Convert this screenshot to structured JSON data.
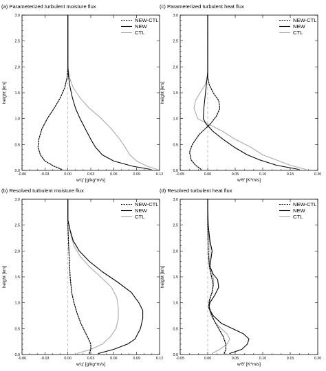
{
  "chart_data": [
    {
      "type": "line",
      "title": "(a) Parameterized turbulent moisture flux",
      "xlabel": "w'q' [g/kg*m/s]",
      "ylabel": "height [km]",
      "xlim": [
        -0.06,
        0.12
      ],
      "ylim": [
        0,
        3.0
      ],
      "xticks": [
        "-0.06",
        "-0.03",
        "0.00",
        "0.03",
        "0.06",
        "0.09",
        "0.12"
      ],
      "yticks": [
        "0.0",
        "0.5",
        "1.0",
        "1.5",
        "2.0",
        "2.5",
        "3.0"
      ],
      "legend_position": "top-right",
      "zero_line": true,
      "series": [
        {
          "name": "NEW-CTL",
          "style": "dotted",
          "color": "#000000",
          "points": [
            [
              -0.008,
              0.02
            ],
            [
              -0.018,
              0.08
            ],
            [
              -0.03,
              0.18
            ],
            [
              -0.036,
              0.3
            ],
            [
              -0.039,
              0.45
            ],
            [
              -0.038,
              0.6
            ],
            [
              -0.034,
              0.8
            ],
            [
              -0.027,
              1.0
            ],
            [
              -0.018,
              1.2
            ],
            [
              -0.01,
              1.4
            ],
            [
              -0.004,
              1.6
            ],
            [
              -0.001,
              1.8
            ],
            [
              0,
              2.0
            ],
            [
              0,
              3.0
            ]
          ]
        },
        {
          "name": "NEW",
          "style": "solid",
          "color": "#000000",
          "points": [
            [
              0.108,
              0.02
            ],
            [
              0.085,
              0.08
            ],
            [
              0.06,
              0.18
            ],
            [
              0.045,
              0.3
            ],
            [
              0.036,
              0.45
            ],
            [
              0.03,
              0.6
            ],
            [
              0.023,
              0.8
            ],
            [
              0.016,
              1.0
            ],
            [
              0.01,
              1.2
            ],
            [
              0.006,
              1.4
            ],
            [
              0.003,
              1.6
            ],
            [
              0.001,
              1.8
            ],
            [
              0,
              2.0
            ],
            [
              0,
              3.0
            ]
          ]
        },
        {
          "name": "CTL",
          "style": "solid",
          "color": "#aaaaaa",
          "points": [
            [
              0.117,
              0.02
            ],
            [
              0.104,
              0.08
            ],
            [
              0.09,
              0.18
            ],
            [
              0.081,
              0.3
            ],
            [
              0.075,
              0.45
            ],
            [
              0.068,
              0.6
            ],
            [
              0.057,
              0.8
            ],
            [
              0.044,
              1.0
            ],
            [
              0.028,
              1.2
            ],
            [
              0.016,
              1.4
            ],
            [
              0.007,
              1.6
            ],
            [
              0.002,
              1.8
            ],
            [
              0,
              2.0
            ],
            [
              0,
              3.0
            ]
          ]
        }
      ]
    },
    {
      "type": "line",
      "title": "(c) Parameterized turbulent heat flux",
      "xlabel": "w'θ' [K*m/s]",
      "ylabel": "height [km]",
      "xlim": [
        -0.05,
        0.2
      ],
      "ylim": [
        0,
        3.0
      ],
      "xticks": [
        "-0.05",
        "0.00",
        "0.05",
        "0.10",
        "0.15",
        "0.20"
      ],
      "yticks": [
        "0.0",
        "0.5",
        "1.0",
        "1.5",
        "2.0",
        "2.5",
        "3.0"
      ],
      "legend_position": "top-right",
      "zero_line": true,
      "series": [
        {
          "name": "NEW-CTL",
          "style": "dotted",
          "color": "#000000",
          "points": [
            [
              -0.012,
              0.02
            ],
            [
              -0.022,
              0.1
            ],
            [
              -0.03,
              0.2
            ],
            [
              -0.033,
              0.35
            ],
            [
              -0.028,
              0.5
            ],
            [
              -0.015,
              0.7
            ],
            [
              0.005,
              0.9
            ],
            [
              0.016,
              1.05
            ],
            [
              0.022,
              1.2
            ],
            [
              0.02,
              1.35
            ],
            [
              0.01,
              1.5
            ],
            [
              0.003,
              1.65
            ],
            [
              0,
              1.8
            ],
            [
              0,
              3.0
            ]
          ]
        },
        {
          "name": "NEW",
          "style": "solid",
          "color": "#000000",
          "points": [
            [
              0.165,
              0.02
            ],
            [
              0.125,
              0.1
            ],
            [
              0.095,
              0.2
            ],
            [
              0.072,
              0.3
            ],
            [
              0.048,
              0.45
            ],
            [
              0.028,
              0.6
            ],
            [
              0.01,
              0.75
            ],
            [
              -0.003,
              0.9
            ],
            [
              -0.008,
              1.0
            ],
            [
              -0.007,
              1.2
            ],
            [
              -0.004,
              1.5
            ],
            [
              -0.002,
              1.7
            ],
            [
              0,
              1.9
            ],
            [
              0,
              3.0
            ]
          ]
        },
        {
          "name": "CTL",
          "style": "solid",
          "color": "#aaaaaa",
          "points": [
            [
              0.178,
              0.02
            ],
            [
              0.15,
              0.1
            ],
            [
              0.125,
              0.2
            ],
            [
              0.1,
              0.3
            ],
            [
              0.078,
              0.45
            ],
            [
              0.05,
              0.6
            ],
            [
              0.028,
              0.75
            ],
            [
              0,
              0.9
            ],
            [
              -0.018,
              1.0
            ],
            [
              -0.025,
              1.2
            ],
            [
              -0.022,
              1.35
            ],
            [
              -0.014,
              1.5
            ],
            [
              -0.005,
              1.65
            ],
            [
              0,
              1.8
            ],
            [
              0,
              3.0
            ]
          ]
        }
      ]
    },
    {
      "type": "line",
      "title": "(b) Resolved turbulent moisture flux",
      "xlabel": "w'q' [g/kg*m/s]",
      "ylabel": "height [km]",
      "xlim": [
        -0.06,
        0.12
      ],
      "ylim": [
        0,
        3.0
      ],
      "xticks": [
        "-0.06",
        "-0.03",
        "0.00",
        "0.03",
        "0.06",
        "0.09",
        "0.12"
      ],
      "yticks": [
        "0.0",
        "0.5",
        "1.0",
        "1.5",
        "2.0",
        "2.5",
        "3.0"
      ],
      "legend_position": "top-right",
      "zero_line": true,
      "series": [
        {
          "name": "NEW-CTL",
          "style": "dotted",
          "color": "#000000",
          "points": [
            [
              0.028,
              0.02
            ],
            [
              0.03,
              0.1
            ],
            [
              0.03,
              0.2
            ],
            [
              0.027,
              0.3
            ],
            [
              0.022,
              0.45
            ],
            [
              0.017,
              0.6
            ],
            [
              0.012,
              0.8
            ],
            [
              0.008,
              1.0
            ],
            [
              0.005,
              1.2
            ],
            [
              0.003,
              1.5
            ],
            [
              0.002,
              1.8
            ],
            [
              0.001,
              2.1
            ],
            [
              0,
              2.5
            ],
            [
              0,
              3.0
            ]
          ]
        },
        {
          "name": "NEW",
          "style": "solid",
          "color": "#000000",
          "points": [
            [
              0.04,
              0.02
            ],
            [
              0.06,
              0.1
            ],
            [
              0.078,
              0.2
            ],
            [
              0.088,
              0.3
            ],
            [
              0.095,
              0.5
            ],
            [
              0.098,
              0.7
            ],
            [
              0.098,
              0.85
            ],
            [
              0.093,
              1.0
            ],
            [
              0.083,
              1.2
            ],
            [
              0.065,
              1.4
            ],
            [
              0.045,
              1.6
            ],
            [
              0.028,
              1.8
            ],
            [
              0.015,
              2.0
            ],
            [
              0.007,
              2.2
            ],
            [
              0.003,
              2.4
            ],
            [
              0,
              2.6
            ],
            [
              0,
              3.0
            ]
          ]
        },
        {
          "name": "CTL",
          "style": "solid",
          "color": "#aaaaaa",
          "points": [
            [
              0.012,
              0.02
            ],
            [
              0.03,
              0.1
            ],
            [
              0.045,
              0.2
            ],
            [
              0.056,
              0.35
            ],
            [
              0.063,
              0.5
            ],
            [
              0.066,
              0.7
            ],
            [
              0.066,
              0.9
            ],
            [
              0.064,
              1.1
            ],
            [
              0.057,
              1.3
            ],
            [
              0.043,
              1.5
            ],
            [
              0.028,
              1.7
            ],
            [
              0.016,
              1.9
            ],
            [
              0.008,
              2.1
            ],
            [
              0.004,
              2.3
            ],
            [
              0,
              2.6
            ],
            [
              0,
              3.0
            ]
          ]
        }
      ]
    },
    {
      "type": "line",
      "title": "(d) Resolved turbulent heat flux",
      "xlabel": "w'θ' [K*m/s]",
      "ylabel": "height [km]",
      "xlim": [
        -0.05,
        0.2
      ],
      "ylim": [
        0,
        3.0
      ],
      "xticks": [
        "-0.05",
        "0.00",
        "0.05",
        "0.10",
        "0.15",
        "0.20"
      ],
      "yticks": [
        "0.0",
        "0.5",
        "1.0",
        "1.5",
        "2.0",
        "2.5",
        "3.0"
      ],
      "legend_position": "top-right",
      "zero_line": true,
      "series": [
        {
          "name": "NEW-CTL",
          "style": "dotted",
          "color": "#000000",
          "points": [
            [
              0.03,
              0.02
            ],
            [
              0.033,
              0.1
            ],
            [
              0.033,
              0.2
            ],
            [
              0.028,
              0.35
            ],
            [
              0.02,
              0.5
            ],
            [
              0.012,
              0.65
            ],
            [
              0.006,
              0.8
            ],
            [
              0.002,
              0.95
            ],
            [
              0.003,
              1.05
            ],
            [
              0.008,
              1.2
            ],
            [
              0.01,
              1.35
            ],
            [
              0.007,
              1.5
            ],
            [
              0.003,
              1.7
            ],
            [
              0.001,
              2.0
            ],
            [
              0,
              2.5
            ],
            [
              0,
              3.0
            ]
          ]
        },
        {
          "name": "NEW",
          "style": "solid",
          "color": "#000000",
          "points": [
            [
              0.04,
              0.02
            ],
            [
              0.062,
              0.1
            ],
            [
              0.072,
              0.2
            ],
            [
              0.075,
              0.3
            ],
            [
              0.065,
              0.4
            ],
            [
              0.045,
              0.5
            ],
            [
              0.025,
              0.6
            ],
            [
              0.01,
              0.75
            ],
            [
              0.002,
              0.9
            ],
            [
              0.004,
              1.0
            ],
            [
              0.013,
              1.15
            ],
            [
              0.02,
              1.3
            ],
            [
              0.018,
              1.45
            ],
            [
              0.01,
              1.55
            ],
            [
              0.004,
              1.7
            ],
            [
              0.006,
              1.85
            ],
            [
              0.008,
              2.0
            ],
            [
              0.004,
              2.2
            ],
            [
              0.001,
              2.5
            ],
            [
              0,
              2.8
            ],
            [
              0,
              3.0
            ]
          ]
        },
        {
          "name": "CTL",
          "style": "solid",
          "color": "#aaaaaa",
          "points": [
            [
              0.008,
              0.02
            ],
            [
              0.022,
              0.1
            ],
            [
              0.035,
              0.2
            ],
            [
              0.04,
              0.3
            ],
            [
              0.035,
              0.4
            ],
            [
              0.025,
              0.5
            ],
            [
              0.015,
              0.6
            ],
            [
              0.006,
              0.75
            ],
            [
              0.002,
              0.9
            ],
            [
              0.003,
              1.0
            ],
            [
              0.006,
              1.15
            ],
            [
              0.01,
              1.3
            ],
            [
              0.011,
              1.45
            ],
            [
              0.007,
              1.6
            ],
            [
              0.003,
              1.75
            ],
            [
              0.004,
              1.9
            ],
            [
              0.004,
              2.1
            ],
            [
              0.002,
              2.3
            ],
            [
              0,
              2.6
            ],
            [
              0,
              3.0
            ]
          ]
        }
      ]
    }
  ]
}
